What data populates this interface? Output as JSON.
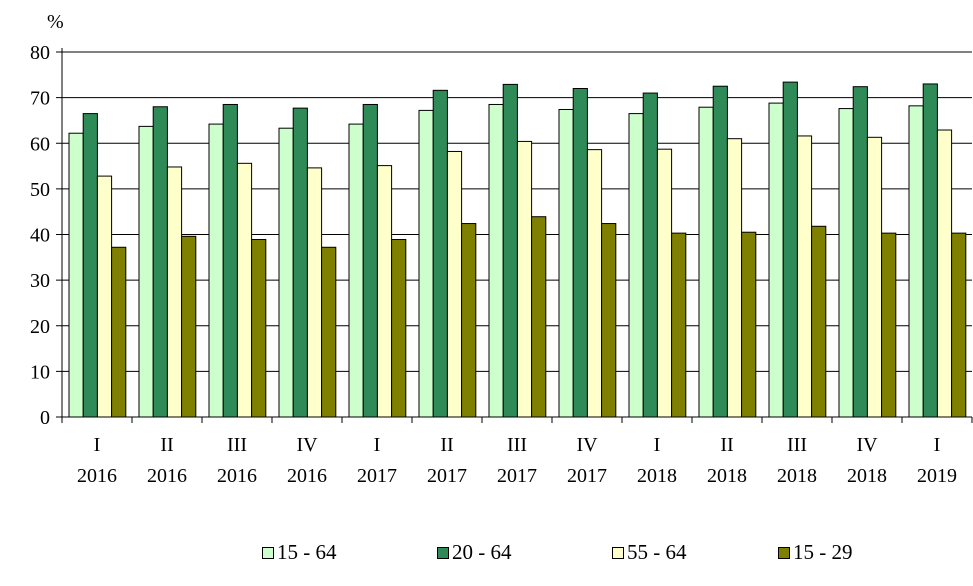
{
  "chart_data": {
    "type": "bar",
    "ylabel": "%",
    "ylim": [
      0,
      80
    ],
    "yticks": [
      "0",
      "10",
      "20",
      "30",
      "40",
      "50",
      "60",
      "70",
      "80"
    ],
    "grid": true,
    "legend_position": "bottom",
    "categories": [
      {
        "line1": "I",
        "line2": "2016"
      },
      {
        "line1": "II",
        "line2": "2016"
      },
      {
        "line1": "III",
        "line2": "2016"
      },
      {
        "line1": "IV",
        "line2": "2016"
      },
      {
        "line1": "I",
        "line2": "2017"
      },
      {
        "line1": "II",
        "line2": "2017"
      },
      {
        "line1": "III",
        "line2": "2017"
      },
      {
        "line1": "IV",
        "line2": "2017"
      },
      {
        "line1": "I",
        "line2": "2018"
      },
      {
        "line1": "II",
        "line2": "2018"
      },
      {
        "line1": "III",
        "line2": "2018"
      },
      {
        "line1": "IV",
        "line2": "2018"
      },
      {
        "line1": "I",
        "line2": "2019"
      }
    ],
    "series": [
      {
        "name": "15 - 64",
        "color": "#ccffcc",
        "values": [
          62.2,
          63.7,
          64.2,
          63.3,
          64.2,
          67.2,
          68.5,
          67.4,
          66.5,
          67.9,
          68.8,
          67.6,
          68.2
        ]
      },
      {
        "name": "20 - 64",
        "color": "#2e8b57",
        "values": [
          66.5,
          68.0,
          68.5,
          67.7,
          68.5,
          71.6,
          72.9,
          72.0,
          71.0,
          72.5,
          73.4,
          72.4,
          73.0
        ]
      },
      {
        "name": "55 - 64",
        "color": "#ffffcc",
        "values": [
          52.8,
          54.8,
          55.6,
          54.6,
          55.1,
          58.2,
          60.4,
          58.6,
          58.7,
          61.0,
          61.6,
          61.3,
          62.9
        ]
      },
      {
        "name": "15 - 29",
        "color": "#808000",
        "values": [
          37.2,
          39.6,
          38.9,
          37.2,
          38.9,
          42.4,
          43.9,
          42.4,
          40.3,
          40.5,
          41.8,
          40.3,
          40.3
        ]
      }
    ]
  }
}
